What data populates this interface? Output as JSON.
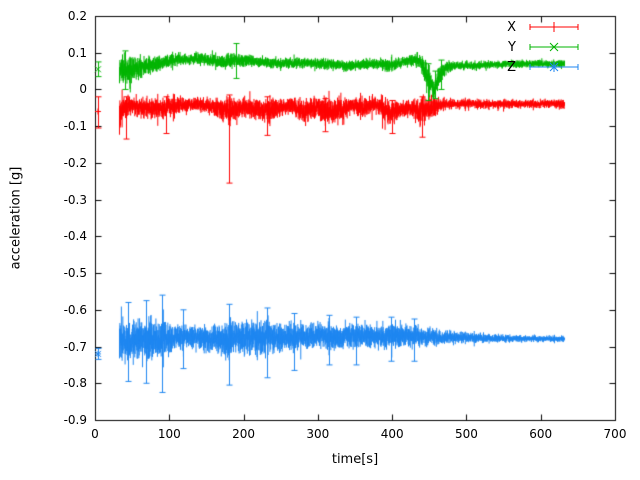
{
  "figure": {
    "background": "#ffffff",
    "border_color": "#000000"
  },
  "chart_data": {
    "type": "scatter",
    "style": "points-with-errorbars",
    "title": "",
    "xlabel": "time[s]",
    "ylabel": "acceleration [g]",
    "xlim": [
      0,
      700
    ],
    "ylim": [
      -0.9,
      0.2
    ],
    "grid": false,
    "x_ticks": {
      "values": [
        0,
        100,
        200,
        300,
        400,
        500,
        600,
        700
      ],
      "labels": [
        "0",
        "100",
        "200",
        "300",
        "400",
        "500",
        "600",
        "700"
      ]
    },
    "y_ticks": {
      "values": [
        0.2,
        0.1,
        0,
        -0.1,
        -0.2,
        -0.3,
        -0.4,
        -0.5,
        -0.6,
        -0.7,
        -0.8,
        -0.9
      ],
      "labels": [
        "0.2",
        "0.1",
        "0",
        "-0.1",
        "-0.2",
        "-0.3",
        "-0.4",
        "-0.5",
        "-0.6",
        "-0.7",
        "-0.8",
        "-0.9"
      ]
    },
    "legend": {
      "position": "top-right",
      "entries": [
        {
          "label": "X",
          "color": "#ff0000",
          "marker": "plus"
        },
        {
          "label": "Y",
          "color": "#00b400",
          "marker": "cross"
        },
        {
          "label": "Z",
          "color": "#1e86f0",
          "marker": "star"
        }
      ]
    },
    "series": [
      {
        "name": "X",
        "color": "#ff0000",
        "marker": "plus",
        "initial_point": {
          "t": 4,
          "v": -0.06,
          "lo": -0.105,
          "hi": -0.02
        },
        "band": {
          "t_start": 33,
          "t_end": 632,
          "envelope": [
            [
              33,
              -0.07,
              0.07
            ],
            [
              38,
              -0.05,
              0.05
            ],
            [
              50,
              -0.045,
              0.035
            ],
            [
              65,
              -0.05,
              0.04
            ],
            [
              80,
              -0.05,
              0.04
            ],
            [
              95,
              -0.05,
              0.045
            ],
            [
              110,
              -0.045,
              0.03
            ],
            [
              130,
              -0.04,
              0.025
            ],
            [
              150,
              -0.045,
              0.03
            ],
            [
              170,
              -0.05,
              0.04
            ],
            [
              182,
              -0.06,
              0.055
            ],
            [
              195,
              -0.05,
              0.035
            ],
            [
              215,
              -0.05,
              0.04
            ],
            [
              232,
              -0.06,
              0.05
            ],
            [
              250,
              -0.05,
              0.03
            ],
            [
              265,
              -0.045,
              0.03
            ],
            [
              282,
              -0.06,
              0.045
            ],
            [
              300,
              -0.05,
              0.04
            ],
            [
              315,
              -0.06,
              0.05
            ],
            [
              330,
              -0.055,
              0.045
            ],
            [
              345,
              -0.045,
              0.03
            ],
            [
              362,
              -0.05,
              0.035
            ],
            [
              378,
              -0.04,
              0.03
            ],
            [
              395,
              -0.065,
              0.05
            ],
            [
              410,
              -0.055,
              0.035
            ],
            [
              425,
              -0.05,
              0.03
            ],
            [
              438,
              -0.06,
              0.055
            ],
            [
              452,
              -0.05,
              0.045
            ],
            [
              465,
              -0.04,
              0.025
            ],
            [
              480,
              -0.04,
              0.02
            ],
            [
              500,
              -0.038,
              0.018
            ],
            [
              530,
              -0.04,
              0.016
            ],
            [
              560,
              -0.04,
              0.016
            ],
            [
              590,
              -0.04,
              0.015
            ],
            [
              615,
              -0.038,
              0.015
            ],
            [
              632,
              -0.04,
              0.02
            ]
          ]
        },
        "spikes": [
          [
            42,
            -0.135,
            -0.02
          ],
          [
            95,
            -0.12,
            -0.02
          ],
          [
            180,
            -0.255,
            -0.015
          ],
          [
            232,
            -0.125,
            -0.02
          ],
          [
            310,
            -0.115,
            -0.025
          ],
          [
            400,
            -0.12,
            -0.03
          ],
          [
            440,
            -0.13,
            -0.02
          ]
        ]
      },
      {
        "name": "Y",
        "color": "#00b400",
        "marker": "cross",
        "initial_point": {
          "t": 4,
          "v": 0.055,
          "lo": 0.035,
          "hi": 0.075
        },
        "band": {
          "t_start": 33,
          "t_end": 632,
          "envelope": [
            [
              33,
              0.055,
              0.055
            ],
            [
              40,
              0.05,
              0.05
            ],
            [
              50,
              0.055,
              0.045
            ],
            [
              60,
              0.06,
              0.04
            ],
            [
              70,
              0.065,
              0.035
            ],
            [
              80,
              0.07,
              0.03
            ],
            [
              95,
              0.075,
              0.025
            ],
            [
              110,
              0.08,
              0.022
            ],
            [
              125,
              0.082,
              0.02
            ],
            [
              140,
              0.085,
              0.022
            ],
            [
              155,
              0.08,
              0.02
            ],
            [
              170,
              0.075,
              0.025
            ],
            [
              185,
              0.08,
              0.03
            ],
            [
              200,
              0.08,
              0.022
            ],
            [
              220,
              0.075,
              0.02
            ],
            [
              240,
              0.072,
              0.02
            ],
            [
              260,
              0.07,
              0.02
            ],
            [
              280,
              0.072,
              0.018
            ],
            [
              300,
              0.07,
              0.018
            ],
            [
              320,
              0.068,
              0.02
            ],
            [
              340,
              0.065,
              0.02
            ],
            [
              360,
              0.068,
              0.018
            ],
            [
              380,
              0.07,
              0.02
            ],
            [
              395,
              0.065,
              0.025
            ],
            [
              410,
              0.072,
              0.02
            ],
            [
              425,
              0.08,
              0.022
            ],
            [
              438,
              0.075,
              0.028
            ],
            [
              448,
              0.03,
              0.05
            ],
            [
              456,
              0.0,
              0.035
            ],
            [
              464,
              0.04,
              0.04
            ],
            [
              472,
              0.06,
              0.022
            ],
            [
              485,
              0.065,
              0.016
            ],
            [
              510,
              0.065,
              0.015
            ],
            [
              540,
              0.068,
              0.014
            ],
            [
              570,
              0.07,
              0.014
            ],
            [
              600,
              0.07,
              0.014
            ],
            [
              632,
              0.07,
              0.015
            ]
          ]
        },
        "spikes": [
          [
            40,
            0.0,
            0.105
          ],
          [
            190,
            0.03,
            0.125
          ],
          [
            448,
            -0.03,
            0.07
          ],
          [
            458,
            -0.025,
            0.05
          ],
          [
            466,
            0.0,
            0.08
          ]
        ]
      },
      {
        "name": "Z",
        "color": "#1e86f0",
        "marker": "star",
        "initial_point": {
          "t": 4,
          "v": -0.72,
          "lo": -0.735,
          "hi": -0.705
        },
        "band": {
          "t_start": 33,
          "t_end": 632,
          "envelope": [
            [
              33,
              -0.68,
              0.075
            ],
            [
              42,
              -0.69,
              0.075
            ],
            [
              52,
              -0.685,
              0.07
            ],
            [
              62,
              -0.68,
              0.07
            ],
            [
              72,
              -0.685,
              0.075
            ],
            [
              85,
              -0.68,
              0.08
            ],
            [
              95,
              -0.68,
              0.065
            ],
            [
              108,
              -0.675,
              0.05
            ],
            [
              122,
              -0.675,
              0.045
            ],
            [
              138,
              -0.675,
              0.045
            ],
            [
              155,
              -0.68,
              0.05
            ],
            [
              170,
              -0.68,
              0.055
            ],
            [
              182,
              -0.68,
              0.07
            ],
            [
              195,
              -0.675,
              0.06
            ],
            [
              210,
              -0.675,
              0.06
            ],
            [
              225,
              -0.678,
              0.065
            ],
            [
              240,
              -0.675,
              0.055
            ],
            [
              255,
              -0.675,
              0.05
            ],
            [
              270,
              -0.672,
              0.05
            ],
            [
              285,
              -0.673,
              0.045
            ],
            [
              300,
              -0.67,
              0.045
            ],
            [
              315,
              -0.675,
              0.05
            ],
            [
              330,
              -0.672,
              0.045
            ],
            [
              345,
              -0.67,
              0.042
            ],
            [
              360,
              -0.673,
              0.042
            ],
            [
              375,
              -0.67,
              0.045
            ],
            [
              390,
              -0.673,
              0.048
            ],
            [
              405,
              -0.672,
              0.045
            ],
            [
              420,
              -0.67,
              0.04
            ],
            [
              435,
              -0.673,
              0.038
            ],
            [
              450,
              -0.674,
              0.032
            ],
            [
              465,
              -0.675,
              0.028
            ],
            [
              480,
              -0.675,
              0.025
            ],
            [
              500,
              -0.676,
              0.02
            ],
            [
              525,
              -0.677,
              0.017
            ],
            [
              550,
              -0.678,
              0.014
            ],
            [
              580,
              -0.678,
              0.012
            ],
            [
              610,
              -0.679,
              0.011
            ],
            [
              632,
              -0.68,
              0.012
            ]
          ]
        },
        "spikes": [
          [
            45,
            -0.795,
            -0.58
          ],
          [
            68,
            -0.8,
            -0.575
          ],
          [
            90,
            -0.825,
            -0.56
          ],
          [
            118,
            -0.76,
            -0.6
          ],
          [
            180,
            -0.805,
            -0.585
          ],
          [
            232,
            -0.785,
            -0.595
          ],
          [
            268,
            -0.765,
            -0.61
          ],
          [
            315,
            -0.75,
            -0.615
          ],
          [
            352,
            -0.75,
            -0.62
          ],
          [
            398,
            -0.74,
            -0.62
          ],
          [
            430,
            -0.74,
            -0.625
          ]
        ]
      }
    ]
  }
}
